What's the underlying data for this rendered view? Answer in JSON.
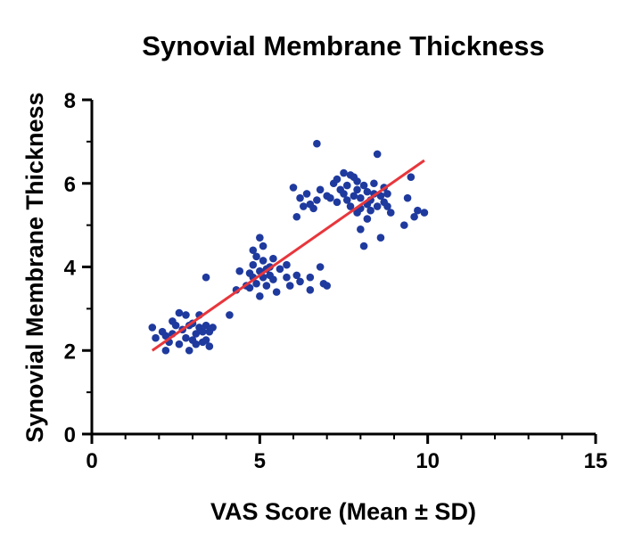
{
  "chart_data": {
    "type": "scatter",
    "title": "Synovial Membrane Thickness",
    "xlabel": "VAS Score (Mean ± SD)",
    "ylabel": "Synovial Membrane Thickness",
    "xlim": [
      0,
      15
    ],
    "ylim": [
      0,
      8
    ],
    "x_ticks": [
      "0",
      "5",
      "10",
      "15"
    ],
    "y_ticks": [
      "0",
      "2",
      "4",
      "6",
      "8"
    ],
    "grid": false,
    "legend": "none",
    "colors": {
      "points": "#1f3a9e",
      "fit_line": "#e8363c"
    },
    "fit_line": {
      "x": [
        1.8,
        9.9
      ],
      "y": [
        2.0,
        6.55
      ]
    },
    "points": [
      [
        1.8,
        2.55
      ],
      [
        1.9,
        2.3
      ],
      [
        2.1,
        2.45
      ],
      [
        2.2,
        2.0
      ],
      [
        2.2,
        2.35
      ],
      [
        2.3,
        2.2
      ],
      [
        2.4,
        2.7
      ],
      [
        2.4,
        2.4
      ],
      [
        2.5,
        2.6
      ],
      [
        2.6,
        2.9
      ],
      [
        2.6,
        2.15
      ],
      [
        2.7,
        2.5
      ],
      [
        2.8,
        2.3
      ],
      [
        2.8,
        2.85
      ],
      [
        2.9,
        2.0
      ],
      [
        2.9,
        2.6
      ],
      [
        3.0,
        2.25
      ],
      [
        3.0,
        2.65
      ],
      [
        3.1,
        2.4
      ],
      [
        3.1,
        2.15
      ],
      [
        3.2,
        2.55
      ],
      [
        3.2,
        2.85
      ],
      [
        3.3,
        2.2
      ],
      [
        3.3,
        2.45
      ],
      [
        3.4,
        2.6
      ],
      [
        3.4,
        2.25
      ],
      [
        3.5,
        2.45
      ],
      [
        3.5,
        2.1
      ],
      [
        3.6,
        2.55
      ],
      [
        3.4,
        3.75
      ],
      [
        4.1,
        2.85
      ],
      [
        4.3,
        3.45
      ],
      [
        4.4,
        3.9
      ],
      [
        4.6,
        3.55
      ],
      [
        4.7,
        3.85
      ],
      [
        4.7,
        3.5
      ],
      [
        4.8,
        4.05
      ],
      [
        4.8,
        4.4
      ],
      [
        4.8,
        3.75
      ],
      [
        4.9,
        4.25
      ],
      [
        4.9,
        3.6
      ],
      [
        5.0,
        3.9
      ],
      [
        5.0,
        3.3
      ],
      [
        5.0,
        4.7
      ],
      [
        5.1,
        4.15
      ],
      [
        5.1,
        3.75
      ],
      [
        5.1,
        4.5
      ],
      [
        5.2,
        3.95
      ],
      [
        5.2,
        3.55
      ],
      [
        5.3,
        3.8
      ],
      [
        5.3,
        4.0
      ],
      [
        5.4,
        3.7
      ],
      [
        5.4,
        4.2
      ],
      [
        5.5,
        3.4
      ],
      [
        5.6,
        3.95
      ],
      [
        5.8,
        4.05
      ],
      [
        5.8,
        3.75
      ],
      [
        5.9,
        3.55
      ],
      [
        6.1,
        3.8
      ],
      [
        6.2,
        3.65
      ],
      [
        6.5,
        3.45
      ],
      [
        6.5,
        3.75
      ],
      [
        6.8,
        4.0
      ],
      [
        6.9,
        3.6
      ],
      [
        7.0,
        3.55
      ],
      [
        6.0,
        5.9
      ],
      [
        6.1,
        5.2
      ],
      [
        6.2,
        5.65
      ],
      [
        6.3,
        5.45
      ],
      [
        6.4,
        5.75
      ],
      [
        6.5,
        5.5
      ],
      [
        6.6,
        5.4
      ],
      [
        6.7,
        5.6
      ],
      [
        6.7,
        6.95
      ],
      [
        6.8,
        5.85
      ],
      [
        7.0,
        5.7
      ],
      [
        7.1,
        5.65
      ],
      [
        7.2,
        6.0
      ],
      [
        7.3,
        5.55
      ],
      [
        7.3,
        6.1
      ],
      [
        7.4,
        5.85
      ],
      [
        7.5,
        5.75
      ],
      [
        7.5,
        6.25
      ],
      [
        7.6,
        5.6
      ],
      [
        7.6,
        5.95
      ],
      [
        7.7,
        6.2
      ],
      [
        7.7,
        5.45
      ],
      [
        7.8,
        5.7
      ],
      [
        7.8,
        6.15
      ],
      [
        7.9,
        5.3
      ],
      [
        7.9,
        5.85
      ],
      [
        8.0,
        5.4
      ],
      [
        8.0,
        5.65
      ],
      [
        8.1,
        5.95
      ],
      [
        8.1,
        4.5
      ],
      [
        8.2,
        5.5
      ],
      [
        8.2,
        5.8
      ],
      [
        8.3,
        5.35
      ],
      [
        8.3,
        5.6
      ],
      [
        8.4,
        6.0
      ],
      [
        8.4,
        5.75
      ],
      [
        8.5,
        5.45
      ],
      [
        8.5,
        6.7
      ],
      [
        8.6,
        5.7
      ],
      [
        8.6,
        4.7
      ],
      [
        8.7,
        5.55
      ],
      [
        8.7,
        5.9
      ],
      [
        8.8,
        5.75
      ],
      [
        8.9,
        5.3
      ],
      [
        9.3,
        5.0
      ],
      [
        9.4,
        5.65
      ],
      [
        9.5,
        6.15
      ],
      [
        9.6,
        5.2
      ],
      [
        9.7,
        5.35
      ],
      [
        9.9,
        5.3
      ],
      [
        7.9,
        6.05
      ],
      [
        8.0,
        4.9
      ],
      [
        8.2,
        5.15
      ],
      [
        8.8,
        5.45
      ]
    ]
  }
}
